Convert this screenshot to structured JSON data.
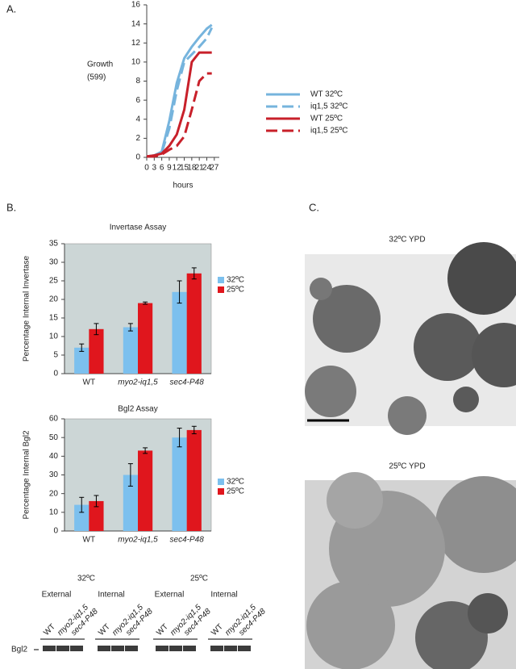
{
  "panel_labels": [
    "A.",
    "B.",
    "C."
  ],
  "chart_data": [
    {
      "type": "line",
      "ylabel": [
        "Growth",
        "(599)"
      ],
      "xlabel": "hours",
      "x": [
        0,
        3,
        6,
        9,
        12,
        15,
        18,
        21,
        24,
        26
      ],
      "xlim": [
        0,
        29
      ],
      "xticks": [
        0,
        3,
        6,
        9,
        12,
        15,
        18,
        21,
        24,
        27
      ],
      "ylim": [
        0,
        16
      ],
      "yticks": [
        0,
        2,
        4,
        6,
        8,
        10,
        12,
        14,
        16
      ],
      "series": [
        {
          "name": "WT  32ºC",
          "color": "#76b4dd",
          "dashed": false,
          "values": [
            0.1,
            0.2,
            0.6,
            3.8,
            7.8,
            10.4,
            11.6,
            12.6,
            13.5,
            13.9
          ]
        },
        {
          "name": "iq1,5  32ºC",
          "color": "#76b4dd",
          "dashed": true,
          "values": [
            0.1,
            0.2,
            0.5,
            3,
            7,
            10,
            10.8,
            11.6,
            12.5,
            13.6
          ]
        },
        {
          "name": "WT  25ºC",
          "color": "#c8202a",
          "dashed": false,
          "values": [
            0.1,
            0.2,
            0.4,
            1.2,
            2.4,
            5,
            10,
            11,
            11,
            11
          ]
        },
        {
          "name": "iq1,5  25ºC",
          "color": "#c8202a",
          "dashed": true,
          "values": [
            0.1,
            0.1,
            0.3,
            0.8,
            1.2,
            2.2,
            5,
            8,
            8.8,
            8.8
          ]
        }
      ]
    },
    {
      "type": "bar",
      "title": "Invertase Assay",
      "ylabel": "Percentage Internal Invertase",
      "categories": [
        "WT",
        "myo2-iq1,5",
        "sec4-P48"
      ],
      "ylim": [
        0,
        35
      ],
      "yticks": [
        0,
        5,
        10,
        15,
        20,
        25,
        30,
        35
      ],
      "series": [
        {
          "name": "32ºC",
          "color": "#7cc0ee",
          "values": [
            7,
            12.5,
            22
          ],
          "errors": [
            1,
            1,
            3
          ]
        },
        {
          "name": "25ºC",
          "color": "#e0161d",
          "values": [
            12,
            19,
            27
          ],
          "errors": [
            1.5,
            0.3,
            1.5
          ]
        }
      ]
    },
    {
      "type": "bar",
      "title": "Bgl2 Assay",
      "ylabel": "Percentage Internal Bgl2",
      "categories": [
        "WT",
        "myo2-iq1,5",
        "sec4-P48"
      ],
      "ylim": [
        0,
        60
      ],
      "yticks": [
        0,
        10,
        20,
        30,
        40,
        50,
        60
      ],
      "series": [
        {
          "name": "32ºC",
          "color": "#7cc0ee",
          "values": [
            14,
            30,
            50
          ],
          "errors": [
            4,
            6,
            5
          ]
        },
        {
          "name": "25ºC",
          "color": "#e0161d",
          "values": [
            16,
            43,
            54
          ],
          "errors": [
            3,
            1.5,
            2
          ]
        }
      ]
    }
  ],
  "blot": {
    "protein": "Bgl2",
    "groups": [
      {
        "temperature": "32ºC",
        "fractions": [
          {
            "name": "External",
            "lanes": [
              "WT",
              "myo2-iq1,5",
              "sec4-P48"
            ]
          },
          {
            "name": "Internal",
            "lanes": [
              "WT",
              "myo2-iq1,5",
              "sec4-P48"
            ]
          }
        ]
      },
      {
        "temperature": "25ºC",
        "fractions": [
          {
            "name": "External",
            "lanes": [
              "WT",
              "myo2-iq1,5",
              "sec4-P48"
            ]
          },
          {
            "name": "Internal",
            "lanes": [
              "WT",
              "myo2-iq1,5",
              "sec4-P48"
            ]
          }
        ]
      }
    ]
  },
  "micrographs": [
    {
      "caption": "32ºC    YPD"
    },
    {
      "caption": "25ºC    YPD"
    }
  ]
}
